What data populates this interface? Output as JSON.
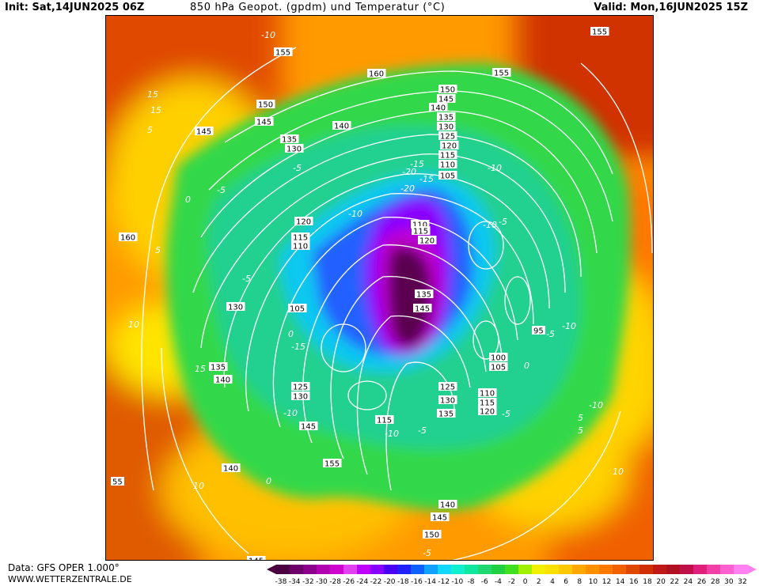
{
  "header": {
    "init": "Init: Sat,14JUN2025 06Z",
    "title": "850 hPa Geopot. (gpdm) und Temperatur (°C)",
    "valid": "Valid: Mon,16JUN2025 15Z"
  },
  "footer": {
    "data_source": "Data: GFS OPER 1.000°",
    "website": "WWW.WETTERZENTRALE.DE"
  },
  "legend": {
    "labels": [
      "-38",
      "-34",
      "-32",
      "-30",
      "-28",
      "-26",
      "-24",
      "-22",
      "-20",
      "-18",
      "-16",
      "-14",
      "-12",
      "-10",
      "-8",
      "-6",
      "-4",
      "-2",
      "0",
      "2",
      "4",
      "6",
      "8",
      "10",
      "12",
      "14",
      "16",
      "18",
      "20",
      "22",
      "24",
      "26",
      "28",
      "30",
      "32"
    ],
    "colors": [
      "#4a0040",
      "#6a0068",
      "#8a008a",
      "#b000b0",
      "#d000d0",
      "#e040f0",
      "#c000ff",
      "#8a00ff",
      "#4a00f0",
      "#2020ff",
      "#1060ff",
      "#10a0ff",
      "#10d8ff",
      "#10f0d0",
      "#10e8a0",
      "#20d870",
      "#20d040",
      "#40e020",
      "#a0f000",
      "#f0f000",
      "#ffe000",
      "#ffc800",
      "#ffa800",
      "#ff9000",
      "#ff7800",
      "#f06000",
      "#e04800",
      "#d03000",
      "#c01818",
      "#b01020",
      "#c0104a",
      "#e0207a",
      "#f040a8",
      "#ff60d0",
      "#ff80f0"
    ]
  },
  "map": {
    "geopotential_labels": [
      {
        "text": "155"
      },
      {
        "text": "155"
      },
      {
        "text": "155"
      },
      {
        "text": "160"
      },
      {
        "text": "150"
      },
      {
        "text": "145"
      },
      {
        "text": "150"
      },
      {
        "text": "145"
      },
      {
        "text": "140"
      },
      {
        "text": "135"
      },
      {
        "text": "130"
      },
      {
        "text": "125"
      },
      {
        "text": "120"
      },
      {
        "text": "115"
      },
      {
        "text": "110"
      },
      {
        "text": "105"
      },
      {
        "text": "140"
      },
      {
        "text": "145"
      },
      {
        "text": "135"
      },
      {
        "text": "130"
      },
      {
        "text": "160"
      },
      {
        "text": "120"
      },
      {
        "text": "115"
      },
      {
        "text": "110"
      },
      {
        "text": "130"
      },
      {
        "text": "105"
      },
      {
        "text": "110"
      },
      {
        "text": "115"
      },
      {
        "text": "120"
      },
      {
        "text": "135"
      },
      {
        "text": "145"
      },
      {
        "text": "135"
      },
      {
        "text": "140"
      },
      {
        "text": "95"
      },
      {
        "text": "100"
      },
      {
        "text": "105"
      },
      {
        "text": "125"
      },
      {
        "text": "130"
      },
      {
        "text": "135"
      },
      {
        "text": "110"
      },
      {
        "text": "115"
      },
      {
        "text": "120"
      },
      {
        "text": "125"
      },
      {
        "text": "130"
      },
      {
        "text": "145"
      },
      {
        "text": "115"
      },
      {
        "text": "155"
      },
      {
        "text": "140"
      },
      {
        "text": "140"
      },
      {
        "text": "145"
      },
      {
        "text": "150"
      },
      {
        "text": "145"
      },
      {
        "text": "55"
      }
    ],
    "temperature_labels": [
      "-10",
      "15",
      "15",
      "5",
      "-5",
      "0",
      "-5",
      "-15",
      "-20",
      "-10",
      "-10",
      "-10",
      "-5",
      "-10",
      "5",
      "-5",
      "0",
      "10",
      "15",
      "5",
      "-10",
      "-15",
      "-10",
      "-5",
      "10",
      "0",
      "-5",
      "10",
      "5",
      "-5",
      "0",
      "-10",
      "-5",
      "-15",
      "-20"
    ]
  }
}
